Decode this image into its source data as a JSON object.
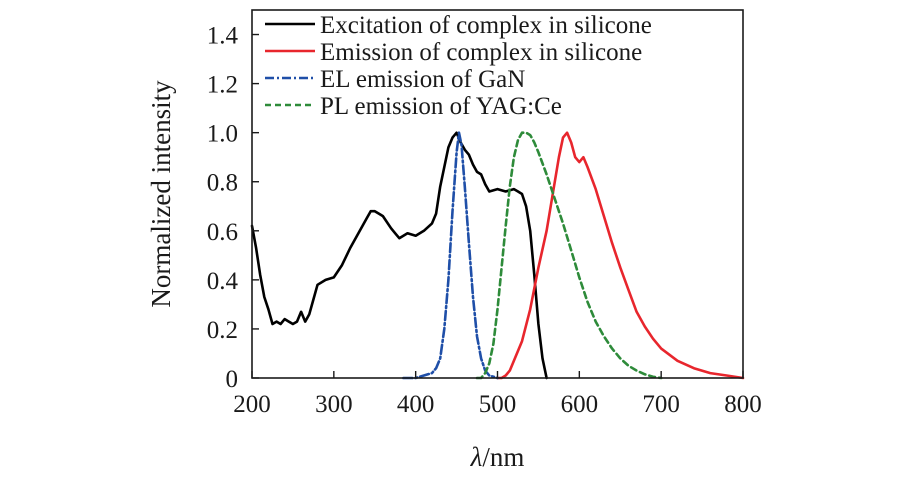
{
  "chart_data": {
    "type": "line",
    "xlabel_symbol": "λ",
    "xlabel_unit": "/nm",
    "ylabel": "Normalized intensity",
    "xlim": [
      200,
      800
    ],
    "ylim": [
      0,
      1.5
    ],
    "x_ticks": [
      "200",
      "300",
      "400",
      "500",
      "600",
      "700",
      "800"
    ],
    "y_ticks": [
      "0",
      "0.2",
      "0.4",
      "0.6",
      "0.8",
      "1.0",
      "1.2",
      "1.4"
    ],
    "grid": false,
    "legend_position": "top-right",
    "series": [
      {
        "name": "Excitation of complex in silicone",
        "color": "#000000",
        "dash": "solid",
        "points": [
          [
            200,
            0.62
          ],
          [
            205,
            0.53
          ],
          [
            210,
            0.42
          ],
          [
            215,
            0.33
          ],
          [
            220,
            0.28
          ],
          [
            225,
            0.22
          ],
          [
            230,
            0.23
          ],
          [
            235,
            0.22
          ],
          [
            240,
            0.24
          ],
          [
            245,
            0.23
          ],
          [
            250,
            0.22
          ],
          [
            255,
            0.23
          ],
          [
            260,
            0.27
          ],
          [
            265,
            0.23
          ],
          [
            270,
            0.26
          ],
          [
            275,
            0.32
          ],
          [
            280,
            0.38
          ],
          [
            290,
            0.4
          ],
          [
            300,
            0.41
          ],
          [
            310,
            0.46
          ],
          [
            320,
            0.53
          ],
          [
            330,
            0.59
          ],
          [
            340,
            0.65
          ],
          [
            345,
            0.68
          ],
          [
            350,
            0.68
          ],
          [
            355,
            0.67
          ],
          [
            360,
            0.66
          ],
          [
            370,
            0.61
          ],
          [
            375,
            0.59
          ],
          [
            380,
            0.57
          ],
          [
            390,
            0.59
          ],
          [
            400,
            0.58
          ],
          [
            410,
            0.6
          ],
          [
            420,
            0.63
          ],
          [
            425,
            0.67
          ],
          [
            430,
            0.78
          ],
          [
            435,
            0.86
          ],
          [
            440,
            0.94
          ],
          [
            445,
            0.98
          ],
          [
            450,
            1.0
          ],
          [
            455,
            0.96
          ],
          [
            460,
            0.93
          ],
          [
            465,
            0.91
          ],
          [
            470,
            0.87
          ],
          [
            475,
            0.84
          ],
          [
            480,
            0.83
          ],
          [
            485,
            0.79
          ],
          [
            490,
            0.76
          ],
          [
            500,
            0.77
          ],
          [
            510,
            0.76
          ],
          [
            520,
            0.77
          ],
          [
            525,
            0.76
          ],
          [
            530,
            0.75
          ],
          [
            535,
            0.7
          ],
          [
            540,
            0.6
          ],
          [
            545,
            0.42
          ],
          [
            550,
            0.22
          ],
          [
            555,
            0.08
          ],
          [
            560,
            0.0
          ]
        ]
      },
      {
        "name": "Emission of complex in silicone",
        "color": "#e8262d",
        "dash": "solid",
        "points": [
          [
            500,
            0.0
          ],
          [
            505,
            0.0
          ],
          [
            510,
            0.01
          ],
          [
            515,
            0.03
          ],
          [
            520,
            0.07
          ],
          [
            530,
            0.15
          ],
          [
            540,
            0.28
          ],
          [
            550,
            0.45
          ],
          [
            560,
            0.6
          ],
          [
            565,
            0.7
          ],
          [
            570,
            0.8
          ],
          [
            575,
            0.9
          ],
          [
            580,
            0.98
          ],
          [
            585,
            1.0
          ],
          [
            590,
            0.96
          ],
          [
            595,
            0.9
          ],
          [
            600,
            0.88
          ],
          [
            605,
            0.9
          ],
          [
            610,
            0.86
          ],
          [
            620,
            0.77
          ],
          [
            630,
            0.66
          ],
          [
            640,
            0.55
          ],
          [
            650,
            0.45
          ],
          [
            660,
            0.36
          ],
          [
            670,
            0.27
          ],
          [
            680,
            0.21
          ],
          [
            690,
            0.16
          ],
          [
            700,
            0.12
          ],
          [
            720,
            0.07
          ],
          [
            740,
            0.04
          ],
          [
            760,
            0.02
          ],
          [
            780,
            0.01
          ],
          [
            800,
            0.0
          ]
        ]
      },
      {
        "name": "EL emission of GaN",
        "color": "#1f4fa8",
        "dash": "dashdot",
        "points": [
          [
            385,
            0.0
          ],
          [
            400,
            0.0
          ],
          [
            410,
            0.01
          ],
          [
            420,
            0.02
          ],
          [
            425,
            0.04
          ],
          [
            430,
            0.08
          ],
          [
            435,
            0.2
          ],
          [
            440,
            0.4
          ],
          [
            445,
            0.68
          ],
          [
            450,
            0.92
          ],
          [
            453,
            1.0
          ],
          [
            456,
            0.95
          ],
          [
            460,
            0.78
          ],
          [
            465,
            0.55
          ],
          [
            470,
            0.33
          ],
          [
            475,
            0.17
          ],
          [
            480,
            0.08
          ],
          [
            485,
            0.03
          ],
          [
            490,
            0.01
          ],
          [
            500,
            0.0
          ]
        ]
      },
      {
        "name": "PL emission of YAG:Ce",
        "color": "#2e8b3a",
        "dash": "dashed",
        "points": [
          [
            475,
            0.0
          ],
          [
            480,
            0.0
          ],
          [
            485,
            0.02
          ],
          [
            490,
            0.06
          ],
          [
            495,
            0.14
          ],
          [
            500,
            0.28
          ],
          [
            505,
            0.45
          ],
          [
            510,
            0.62
          ],
          [
            515,
            0.78
          ],
          [
            520,
            0.9
          ],
          [
            525,
            0.97
          ],
          [
            530,
            1.0
          ],
          [
            535,
            1.0
          ],
          [
            540,
            0.99
          ],
          [
            545,
            0.96
          ],
          [
            550,
            0.92
          ],
          [
            560,
            0.83
          ],
          [
            570,
            0.73
          ],
          [
            580,
            0.63
          ],
          [
            590,
            0.52
          ],
          [
            600,
            0.41
          ],
          [
            610,
            0.31
          ],
          [
            620,
            0.23
          ],
          [
            630,
            0.17
          ],
          [
            640,
            0.12
          ],
          [
            650,
            0.08
          ],
          [
            660,
            0.05
          ],
          [
            670,
            0.03
          ],
          [
            680,
            0.015
          ],
          [
            690,
            0.005
          ],
          [
            700,
            0.0
          ]
        ]
      }
    ]
  }
}
